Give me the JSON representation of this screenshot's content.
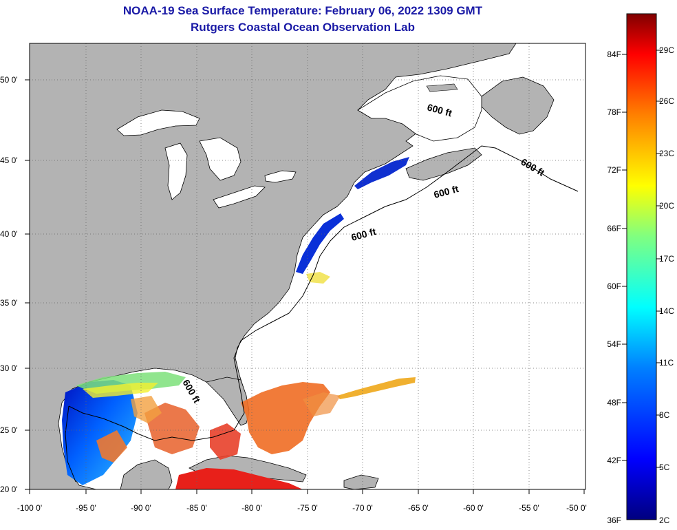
{
  "header": {
    "title_line1": "NOAA-19 Sea Surface Temperature:  February 06, 2022 1309 GMT",
    "title_line2": "Rutgers Coastal Ocean Observation Lab"
  },
  "axes": {
    "lon_ticks": [
      "-100 0'",
      "-95 0'",
      "-90 0'",
      "-85 0'",
      "-80 0'",
      "-75 0'",
      "-70 0'",
      "-65 0'",
      "-60 0'",
      "-55 0'",
      "-50 0'"
    ],
    "lat_ticks": [
      "50 0'",
      "45 0'",
      "40 0'",
      "35 0'",
      "30 0'",
      "25 0'",
      "20 0'"
    ]
  },
  "contour_labels": [
    "600 ft",
    "600 ft",
    "600 ft",
    "600 ft",
    "600 ft"
  ],
  "colorbar": {
    "fahrenheit": [
      "84F",
      "78F",
      "72F",
      "66F",
      "60F",
      "54F",
      "48F",
      "42F",
      "36F"
    ],
    "celsius": [
      "29C",
      "26C",
      "23C",
      "20C",
      "17C",
      "14C",
      "11C",
      "8C",
      "5C",
      "2C"
    ]
  },
  "colors": {
    "title": "#1a1aa6",
    "land": "#b3b3b3",
    "ocean_no_data": "#ffffff"
  }
}
